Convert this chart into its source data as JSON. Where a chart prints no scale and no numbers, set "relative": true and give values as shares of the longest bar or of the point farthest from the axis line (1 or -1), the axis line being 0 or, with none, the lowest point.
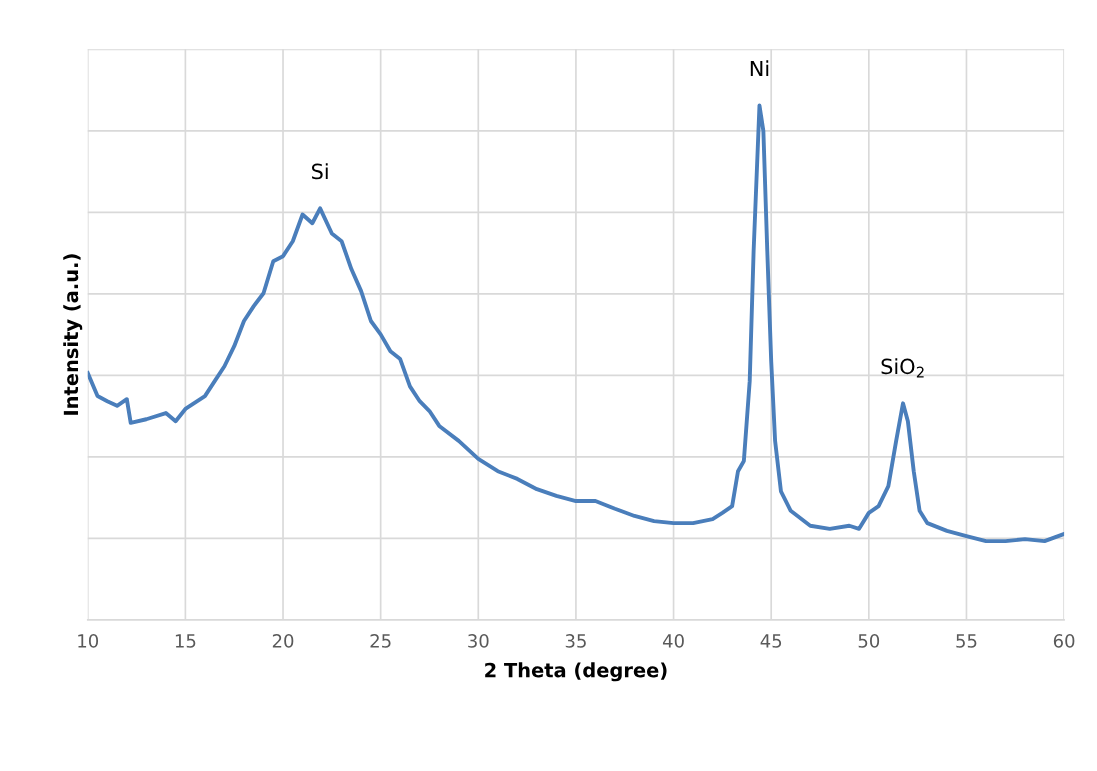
{
  "chart_data": {
    "type": "line",
    "relative": true,
    "xlabel": "2 Theta (degree)",
    "ylabel": "Intensity (a.u.)",
    "xlim": [
      10,
      60
    ],
    "xticks": [
      10,
      15,
      20,
      25,
      30,
      35,
      40,
      45,
      50,
      55,
      60
    ],
    "tick_labels": "x",
    "grid": true,
    "legend": false,
    "marker": "none",
    "line_style": "solid",
    "annotations": [
      {
        "text": "Si",
        "x": 21.9,
        "y": 0.8
      },
      {
        "text": "Ni",
        "x": 44.4,
        "y": 1.0
      },
      {
        "text": "SiO$_{2}$",
        "x": 51.75,
        "y": 0.421
      }
    ],
    "series": [
      {
        "color": "#4a7ebb",
        "x": [
          10,
          10.5,
          11,
          11.5,
          12,
          12.2,
          13,
          14,
          14.5,
          15,
          16,
          16.5,
          17,
          17.5,
          18,
          18.5,
          19,
          19.5,
          20,
          20.5,
          21,
          21.5,
          21.9,
          22.5,
          23,
          23.5,
          24,
          24.5,
          25,
          25.5,
          26,
          26.5,
          27,
          27.5,
          28,
          29,
          30,
          31,
          32,
          33,
          34,
          35,
          36,
          37,
          38,
          39,
          40,
          41,
          42,
          42.5,
          43,
          43.3,
          43.6,
          43.9,
          44.1,
          44.4,
          44.6,
          44.8,
          45.0,
          45.2,
          45.5,
          46,
          47,
          48,
          49,
          49.5,
          50,
          50.5,
          51,
          51.4,
          51.75,
          52,
          52.3,
          52.6,
          53,
          54,
          55,
          56,
          57,
          58,
          59,
          60
        ],
        "values": [
          0.48,
          0.435,
          0.425,
          0.416,
          0.429,
          0.383,
          0.39,
          0.402,
          0.386,
          0.41,
          0.435,
          0.464,
          0.493,
          0.532,
          0.581,
          0.61,
          0.635,
          0.697,
          0.707,
          0.736,
          0.788,
          0.771,
          0.8,
          0.751,
          0.736,
          0.682,
          0.639,
          0.581,
          0.555,
          0.522,
          0.507,
          0.454,
          0.425,
          0.406,
          0.377,
          0.348,
          0.313,
          0.289,
          0.274,
          0.254,
          0.241,
          0.231,
          0.231,
          0.216,
          0.202,
          0.192,
          0.188,
          0.188,
          0.196,
          0.208,
          0.221,
          0.289,
          0.309,
          0.464,
          0.717,
          1.0,
          0.95,
          0.717,
          0.503,
          0.348,
          0.25,
          0.212,
          0.183,
          0.177,
          0.183,
          0.177,
          0.208,
          0.221,
          0.26,
          0.348,
          0.421,
          0.386,
          0.289,
          0.212,
          0.188,
          0.173,
          0.163,
          0.153,
          0.153,
          0.157,
          0.153,
          0.167
        ]
      }
    ]
  }
}
